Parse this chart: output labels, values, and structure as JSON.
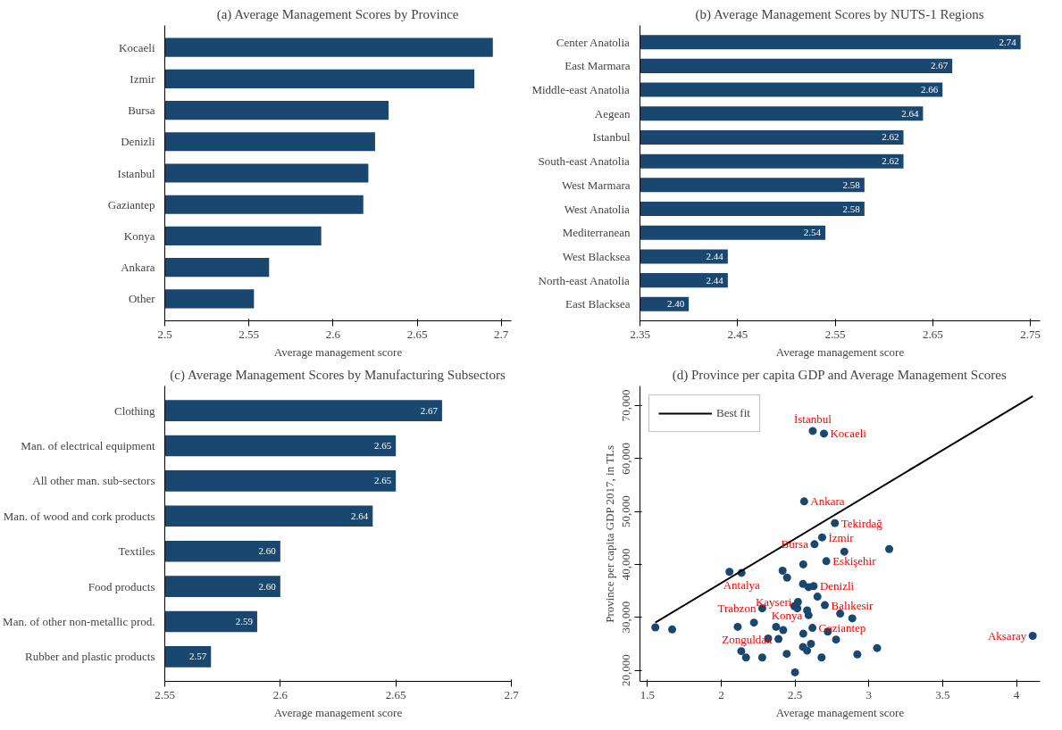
{
  "chart_data": [
    {
      "type": "bar",
      "orientation": "horizontal",
      "title": "(a) Average Management Scores by Province",
      "xlabel": "Average management score",
      "categories": [
        "Kocaeli",
        "Izmir",
        "Bursa",
        "Denizli",
        "Istanbul",
        "Gaziantep",
        "Konya",
        "Ankara",
        "Other"
      ],
      "series": [
        {
          "color": "#1a476f",
          "values": [
            2.695,
            2.684,
            2.633,
            2.625,
            2.621,
            2.618,
            2.593,
            2.562,
            2.553
          ]
        }
      ],
      "xlim": [
        2.5,
        2.706
      ],
      "xticks": [
        2.5,
        2.55,
        2.6,
        2.65,
        2.7
      ]
    },
    {
      "type": "bar",
      "orientation": "horizontal",
      "title": "(b) Average Management Scores by NUTS-1 Regions",
      "xlabel": "Average management score",
      "categories": [
        "Center Anatolia",
        "East Marmara",
        "Middle-east Anatolia",
        "Aegean",
        "Istanbul",
        "South-east Anatolia",
        "West Marmara",
        "West Anatolia",
        "Mediterranean",
        "West Blacksea",
        "North-east Anatolia",
        "East Blacksea"
      ],
      "series": [
        {
          "color": "#1a476f",
          "values": [
            2.74,
            2.67,
            2.66,
            2.64,
            2.62,
            2.62,
            2.58,
            2.58,
            2.54,
            2.44,
            2.44,
            2.4
          ],
          "value_labels": [
            "2.74",
            "2.67",
            "2.66",
            "2.64",
            "2.62",
            "2.62",
            "2.58",
            "2.58",
            "2.54",
            "2.44",
            "2.44",
            "2.40"
          ]
        }
      ],
      "xlim": [
        2.35,
        2.76
      ],
      "xticks": [
        2.35,
        2.45,
        2.55,
        2.65,
        2.75
      ]
    },
    {
      "type": "bar",
      "orientation": "horizontal",
      "title": "(c) Average Management Scores by Manufacturing Subsectors",
      "xlabel": "Average management score",
      "categories": [
        "Clothing",
        "Man. of electrical equipment",
        "All other man. sub-sectors",
        "Man. of wood and cork products",
        "Textiles",
        "Food products",
        "Man. of other non-metallic prod.",
        "Rubber and plastic products"
      ],
      "series": [
        {
          "color": "#1a476f",
          "values": [
            2.67,
            2.65,
            2.65,
            2.64,
            2.6,
            2.6,
            2.59,
            2.57
          ],
          "value_labels": [
            "2.67",
            "2.65",
            "2.65",
            "2.64",
            "2.60",
            "2.60",
            "2.59",
            "2.57"
          ]
        }
      ],
      "xlim": [
        2.55,
        2.7
      ],
      "xticks": [
        2.55,
        2.6,
        2.65,
        2.7
      ]
    },
    {
      "type": "scatter",
      "title": "(d) Province per capita GDP and Average Management Scores",
      "xlabel": "Average management score",
      "ylabel": "Province per capita GDP 2017, in TLs",
      "marker": "circle",
      "legend": "top left",
      "series": [
        {
          "color": "#1a476f",
          "x": [
            2.62,
            2.696,
            2.562,
            2.77,
            2.684,
            2.632,
            2.834,
            3.138,
            2.712,
            2.556,
            2.056,
            2.138,
            2.416,
            2.446,
            2.554,
            2.592,
            2.626,
            2.652,
            2.52,
            2.496,
            2.516,
            2.278,
            2.702,
            2.582,
            2.592,
            2.806,
            2.888,
            1.554,
            1.668,
            2.112,
            2.222,
            2.372,
            2.42,
            2.618,
            2.722,
            2.556,
            2.318,
            2.388,
            2.778,
            2.608,
            2.554,
            2.582,
            2.136,
            2.168,
            2.278,
            2.444,
            2.68,
            2.922,
            3.056,
            2.5,
            4.11
          ],
          "values": [
            65200,
            64700,
            51900,
            47800,
            45100,
            43800,
            42400,
            42900,
            40600,
            40000,
            38600,
            38400,
            38800,
            37500,
            36300,
            35700,
            35900,
            33900,
            32900,
            32100,
            31700,
            31700,
            32300,
            31300,
            30400,
            30700,
            29800,
            28100,
            27700,
            28200,
            29000,
            28200,
            27600,
            28000,
            27300,
            26900,
            26000,
            25900,
            25800,
            25000,
            24400,
            23700,
            23600,
            22400,
            22400,
            23100,
            22400,
            23000,
            24200,
            19600,
            26500
          ]
        },
        {
          "type": "line",
          "name": "Best fit",
          "color": "#000000",
          "marker": "none",
          "x": [
            1.554,
            4.11
          ],
          "values": [
            29000,
            71800
          ]
        }
      ],
      "annotations": [
        {
          "text": "İstanbul",
          "x": 2.62,
          "y": 65200
        },
        {
          "text": "Kocaeli",
          "x": 2.696,
          "y": 64700
        },
        {
          "text": "Ankara",
          "x": 2.562,
          "y": 51900
        },
        {
          "text": "Tekirdağ",
          "x": 2.77,
          "y": 47800
        },
        {
          "text": "İzmir",
          "x": 2.684,
          "y": 45100
        },
        {
          "text": "Bursa",
          "x": 2.632,
          "y": 43800
        },
        {
          "text": "Eskişehir",
          "x": 2.712,
          "y": 40600
        },
        {
          "text": "Antalya",
          "x": 2.138,
          "y": 38400
        },
        {
          "text": "Denizli",
          "x": 2.626,
          "y": 35900
        },
        {
          "text": "Kayseri",
          "x": 2.52,
          "y": 32900
        },
        {
          "text": "Trabzon",
          "x": 2.278,
          "y": 31700
        },
        {
          "text": "Balıkesir",
          "x": 2.702,
          "y": 32300
        },
        {
          "text": "Konya",
          "x": 2.592,
          "y": 30400
        },
        {
          "text": "Gaziantep",
          "x": 2.618,
          "y": 28000
        },
        {
          "text": "Zonguldak",
          "x": 2.388,
          "y": 25900
        },
        {
          "text": "Aksaray",
          "x": 4.11,
          "y": 26500
        }
      ],
      "xlim": [
        1.45,
        4.16
      ],
      "xticks": [
        1.5,
        2,
        2.5,
        3,
        3.5,
        4
      ],
      "ylim": [
        17900,
        73700
      ],
      "yticks": [
        {
          "value": 20000,
          "label": "20,000"
        },
        {
          "value": 30000,
          "label": "30,000"
        },
        {
          "value": 40000,
          "label": "40,000"
        },
        {
          "value": 50000,
          "label": "50,000"
        },
        {
          "value": 60000,
          "label": "60,000"
        },
        {
          "value": 70000,
          "label": "70,000"
        }
      ]
    }
  ]
}
